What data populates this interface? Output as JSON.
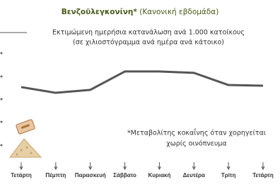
{
  "chart_data": {
    "type": "line",
    "title": "Βενζοϋλεγκονίνη*",
    "title_note": "(Κανονική εβδομάδα)",
    "subtitle": [
      "Εκτιμώμενη ημερήσια κατανάλωση ανά 1.000 κατοίκους",
      "(σε χιλιοστόγραμμα ανά ημέρα ανά κάτοικο)"
    ],
    "annotation": [
      "*Μεταβολίτης κοκαΐνης όταν χορηγείται",
      "χωρίς οινόπνευμα"
    ],
    "categories": [
      "Τετάρτη",
      "Πέμπτη",
      "Παρασκευή",
      "Σάββατο",
      "Κυριακή",
      "Δευτέρα",
      "Τρίτη",
      "Τετάρτη"
    ],
    "values": [
      3.52,
      3.27,
      3.4,
      4.2,
      4.2,
      4.14,
      3.61,
      3.58
    ],
    "color": "#555555",
    "ylim": [
      0,
      5
    ]
  }
}
